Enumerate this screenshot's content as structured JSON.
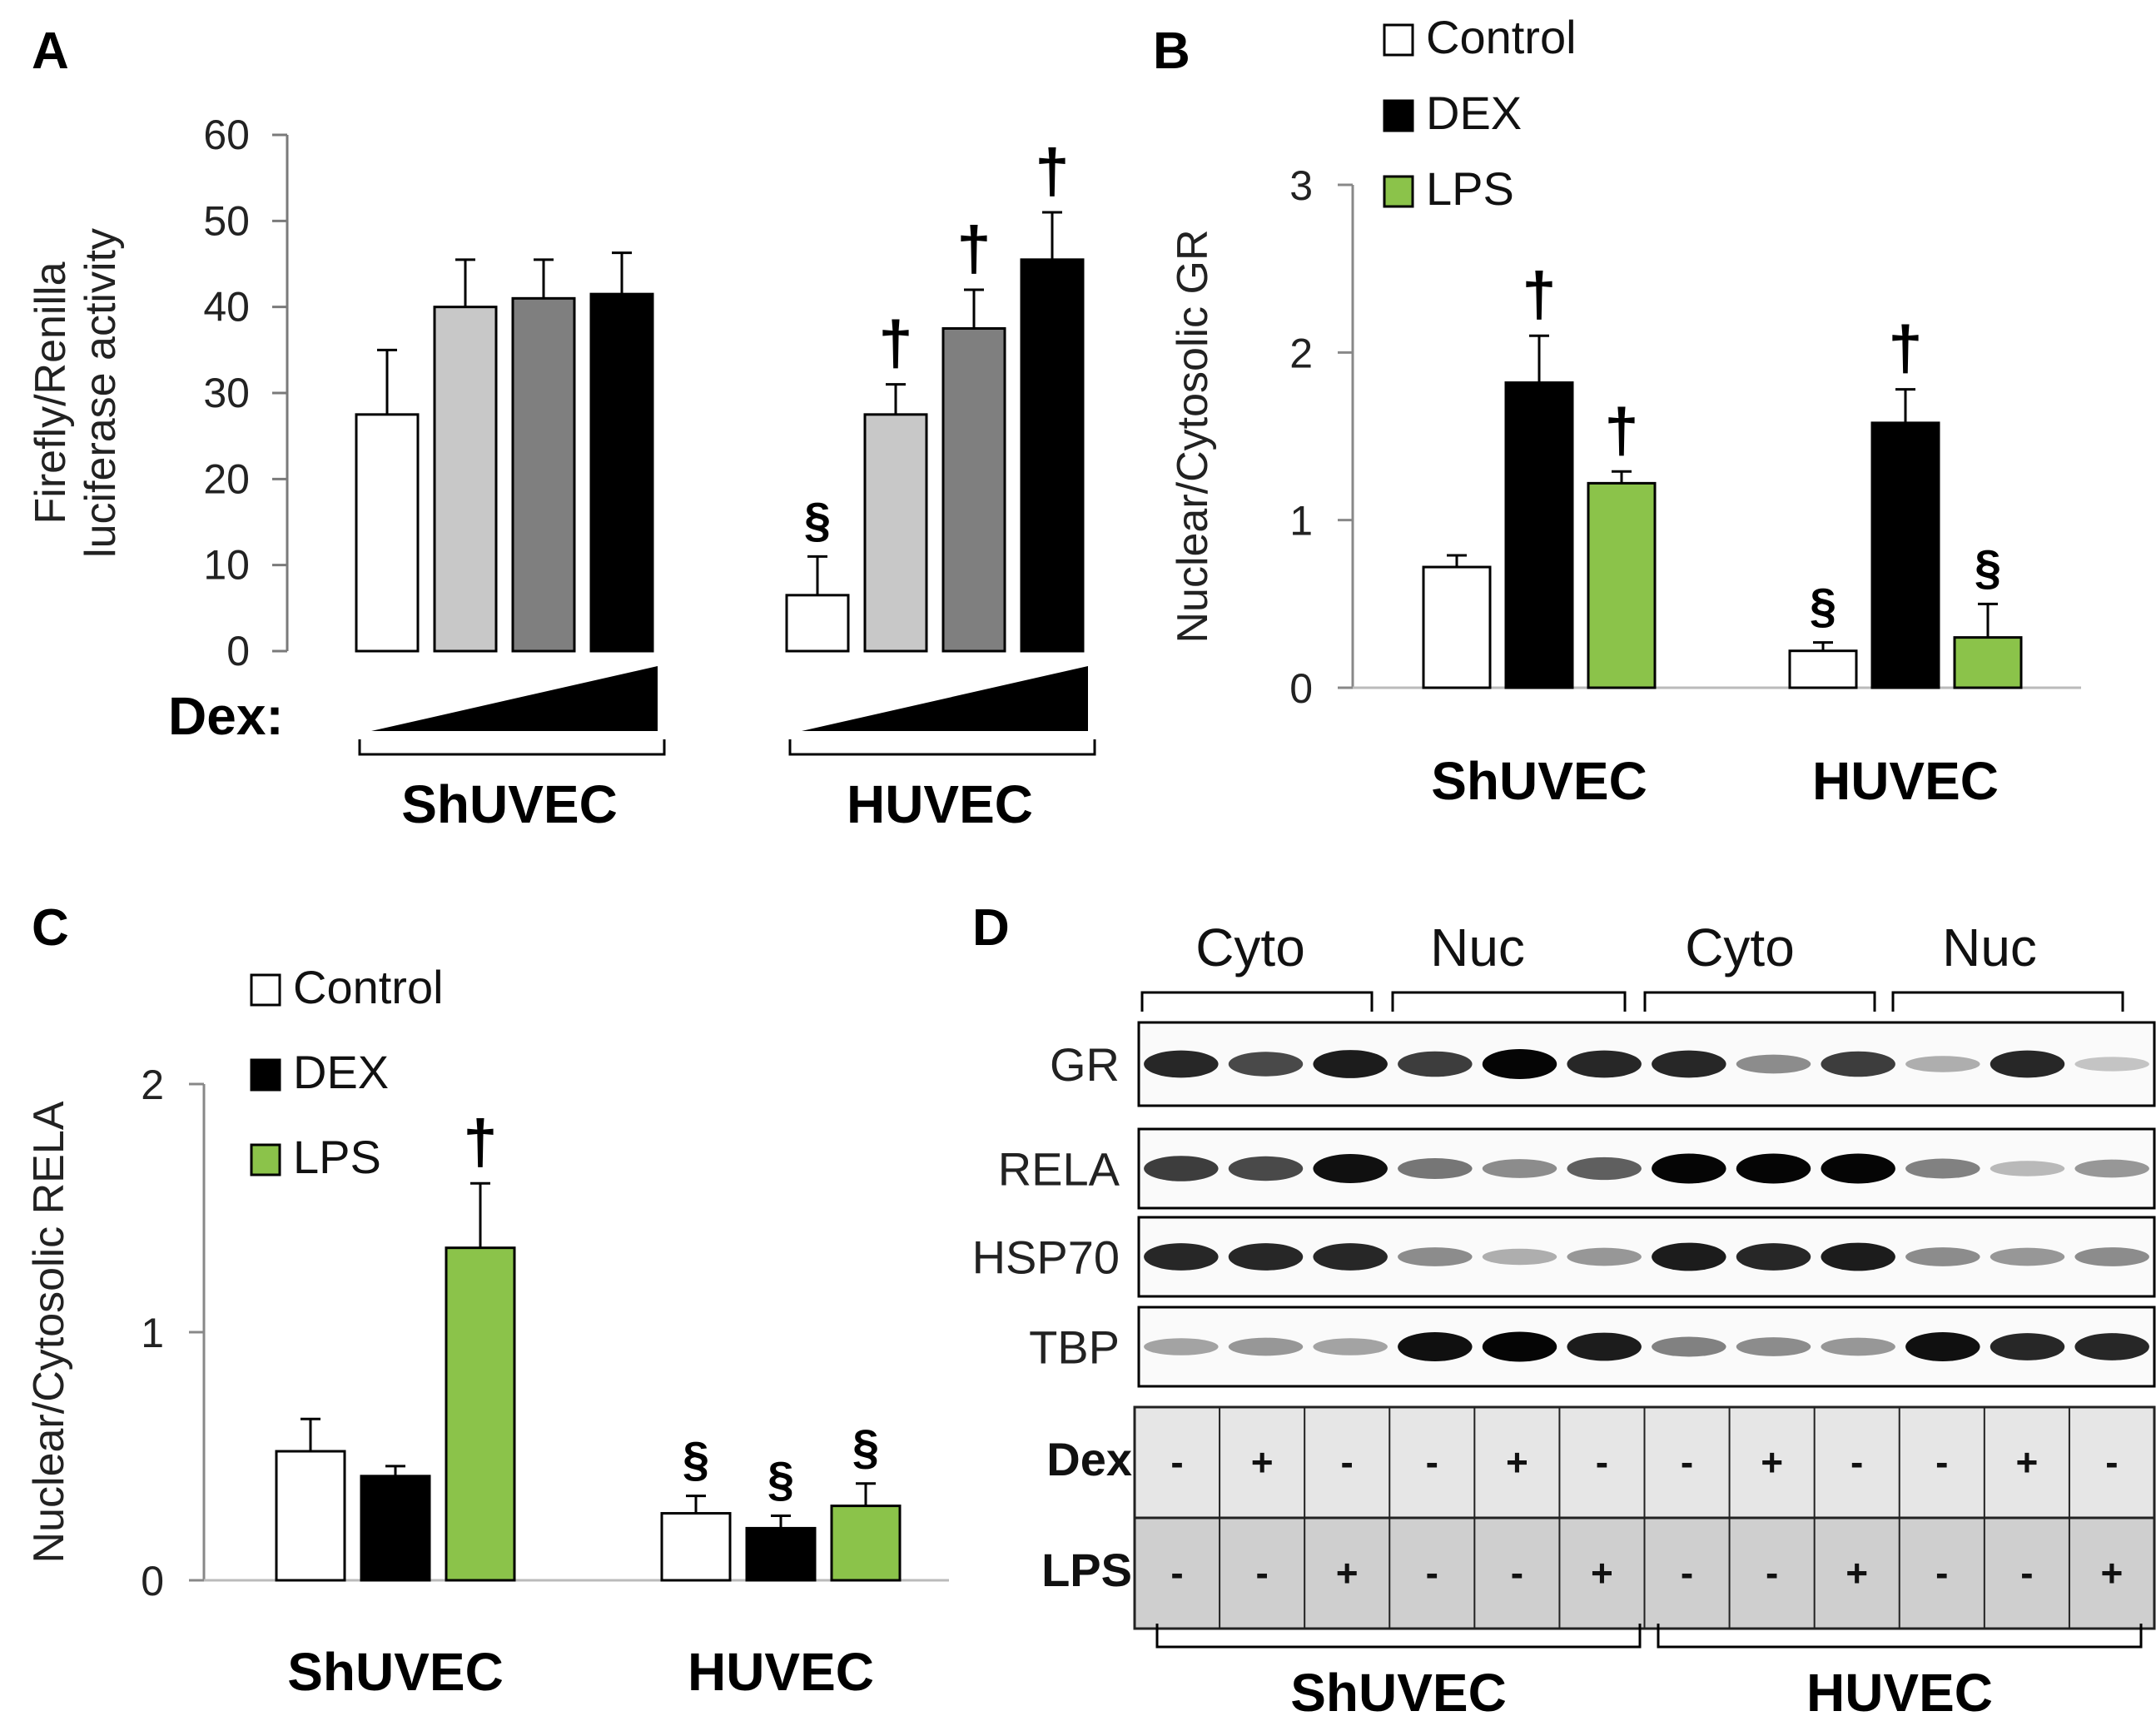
{
  "chart_data": [
    {
      "panel": "A",
      "type": "bar",
      "ylabel_lines": [
        "Firefly/Renilla",
        "luciferase activity"
      ],
      "ylim": [
        0,
        60
      ],
      "yticks": [
        0,
        10,
        20,
        30,
        40,
        50,
        60
      ],
      "dex_label": "Dex:",
      "groups": [
        {
          "name": "ShUVEC",
          "values": [
            27.5,
            40,
            41,
            41.5
          ],
          "errors": [
            7.5,
            5.5,
            4.5,
            4.8
          ],
          "colors": [
            "#ffffff",
            "#c8c8c8",
            "#7f7f7f",
            "#000000"
          ],
          "marks": [
            "",
            "",
            "",
            ""
          ]
        },
        {
          "name": "HUVEC",
          "values": [
            6.5,
            27.5,
            37.5,
            45.5
          ],
          "errors": [
            4.5,
            3.5,
            4.5,
            5.5
          ],
          "colors": [
            "#ffffff",
            "#c8c8c8",
            "#7f7f7f",
            "#000000"
          ],
          "marks": [
            "§",
            "†",
            "†",
            "†"
          ]
        }
      ]
    },
    {
      "panel": "B",
      "type": "bar",
      "ylabel": "Nuclear/Cytosolic GR",
      "ylim": [
        0,
        3
      ],
      "yticks": [
        0,
        1,
        2,
        3
      ],
      "legend": [
        "Control",
        "DEX",
        "LPS"
      ],
      "legend_colors": [
        "#ffffff",
        "#000000",
        "#8bc34a"
      ],
      "series": [
        {
          "name": "Control",
          "values": [
            0.72,
            0.22
          ],
          "errors": [
            0.07,
            0.05
          ],
          "marks": [
            "",
            "§"
          ]
        },
        {
          "name": "DEX",
          "values": [
            1.82,
            1.58
          ],
          "errors": [
            0.28,
            0.2
          ],
          "marks": [
            "†",
            "†"
          ]
        },
        {
          "name": "LPS",
          "values": [
            1.22,
            0.3
          ],
          "errors": [
            0.07,
            0.2
          ],
          "marks": [
            "†",
            "§"
          ]
        }
      ],
      "categories": [
        "ShUVEC",
        "HUVEC"
      ]
    },
    {
      "panel": "C",
      "type": "bar",
      "ylabel": "Nuclear/Cytosolic RELA",
      "ylim": [
        0,
        2
      ],
      "yticks": [
        0,
        1,
        2
      ],
      "legend": [
        "Control",
        "DEX",
        "LPS"
      ],
      "legend_colors": [
        "#ffffff",
        "#000000",
        "#8bc34a"
      ],
      "series": [
        {
          "name": "Control",
          "values": [
            0.52,
            0.27
          ],
          "errors": [
            0.13,
            0.07
          ],
          "marks": [
            "",
            "§"
          ]
        },
        {
          "name": "DEX",
          "values": [
            0.42,
            0.21
          ],
          "errors": [
            0.04,
            0.05
          ],
          "marks": [
            "",
            "§"
          ]
        },
        {
          "name": "LPS",
          "values": [
            1.34,
            0.3
          ],
          "errors": [
            0.26,
            0.09
          ],
          "marks": [
            "†",
            "§"
          ]
        }
      ],
      "categories": [
        "ShUVEC",
        "HUVEC"
      ]
    }
  ],
  "blot": {
    "panel": "D",
    "column_heads": [
      "Cyto",
      "Nuc",
      "Cyto",
      "Nuc"
    ],
    "rows": [
      "GR",
      "RELA",
      "HSP70",
      "TBP"
    ],
    "band_intensity": {
      "GR": [
        0.85,
        0.7,
        0.9,
        0.75,
        1.0,
        0.85,
        0.85,
        0.4,
        0.75,
        0.25,
        0.85,
        0.15
      ],
      "RELA": [
        0.75,
        0.7,
        0.95,
        0.5,
        0.4,
        0.6,
        1.0,
        1.0,
        1.0,
        0.45,
        0.2,
        0.35
      ],
      "HSP70": [
        0.85,
        0.85,
        0.85,
        0.4,
        0.25,
        0.35,
        0.9,
        0.85,
        0.9,
        0.4,
        0.35,
        0.4
      ],
      "TBP": [
        0.3,
        0.35,
        0.3,
        0.95,
        1.0,
        0.9,
        0.45,
        0.4,
        0.35,
        0.95,
        0.85,
        0.85
      ]
    },
    "treatment_labels": [
      "Dex",
      "LPS"
    ],
    "dex": [
      "-",
      "+",
      "-",
      "-",
      "+",
      "-",
      "-",
      "+",
      "-",
      "-",
      "+",
      "-"
    ],
    "lps": [
      "-",
      "-",
      "+",
      "-",
      "-",
      "+",
      "-",
      "-",
      "+",
      "-",
      "-",
      "+"
    ],
    "groups": [
      "ShUVEC",
      "HUVEC"
    ]
  },
  "panel_letters": {
    "a": "A",
    "b": "B",
    "c": "C",
    "d": "D"
  }
}
